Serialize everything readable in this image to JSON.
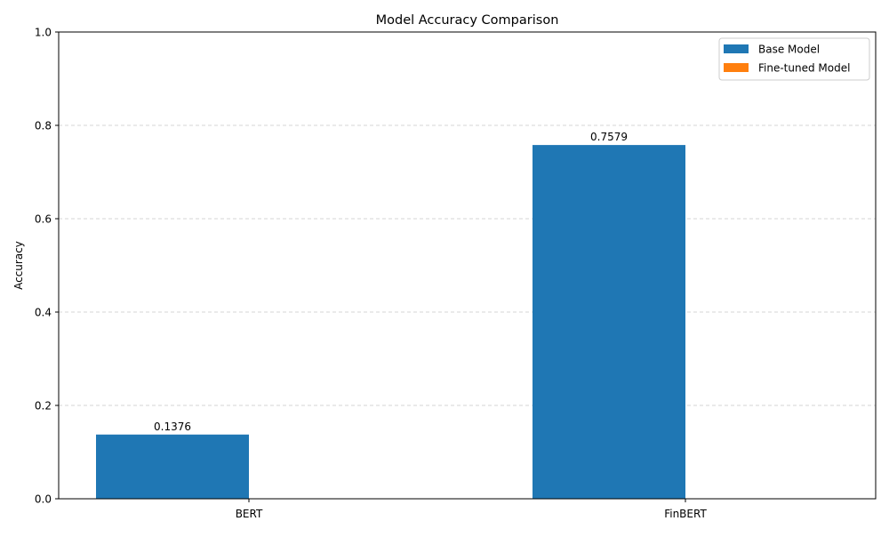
{
  "chart_data": {
    "type": "bar",
    "title": "Model Accuracy Comparison",
    "xlabel": "",
    "ylabel": "Accuracy",
    "categories": [
      "BERT",
      "FinBERT"
    ],
    "series": [
      {
        "name": "Base Model",
        "values": [
          0.1376,
          0.7579
        ],
        "color": "#1f77b4",
        "value_labels": [
          "0.1376",
          "0.7579"
        ]
      },
      {
        "name": "Fine-tuned Model",
        "values": [
          0,
          0
        ],
        "color": "#ff7f0e",
        "value_labels": [
          "",
          ""
        ]
      }
    ],
    "ylim": [
      0,
      1.0
    ],
    "yticks": [
      0.0,
      0.2,
      0.4,
      0.6,
      0.8,
      1.0
    ],
    "ytick_labels": [
      "0.0",
      "0.2",
      "0.4",
      "0.6",
      "0.8",
      "1.0"
    ],
    "grid": {
      "axis": "y",
      "style": "dashed",
      "color": "#c8c8c8"
    },
    "legend_position": "top-right"
  }
}
